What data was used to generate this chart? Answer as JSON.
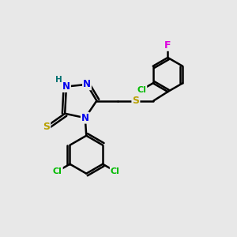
{
  "background_color": "#e8e8e8",
  "bond_color": "#000000",
  "bond_width": 1.8,
  "atom_colors": {
    "N": "#0000ee",
    "S": "#b8a000",
    "Cl": "#00bb00",
    "F": "#dd00dd",
    "H": "#007070",
    "C": "#000000"
  },
  "font_size": 9
}
